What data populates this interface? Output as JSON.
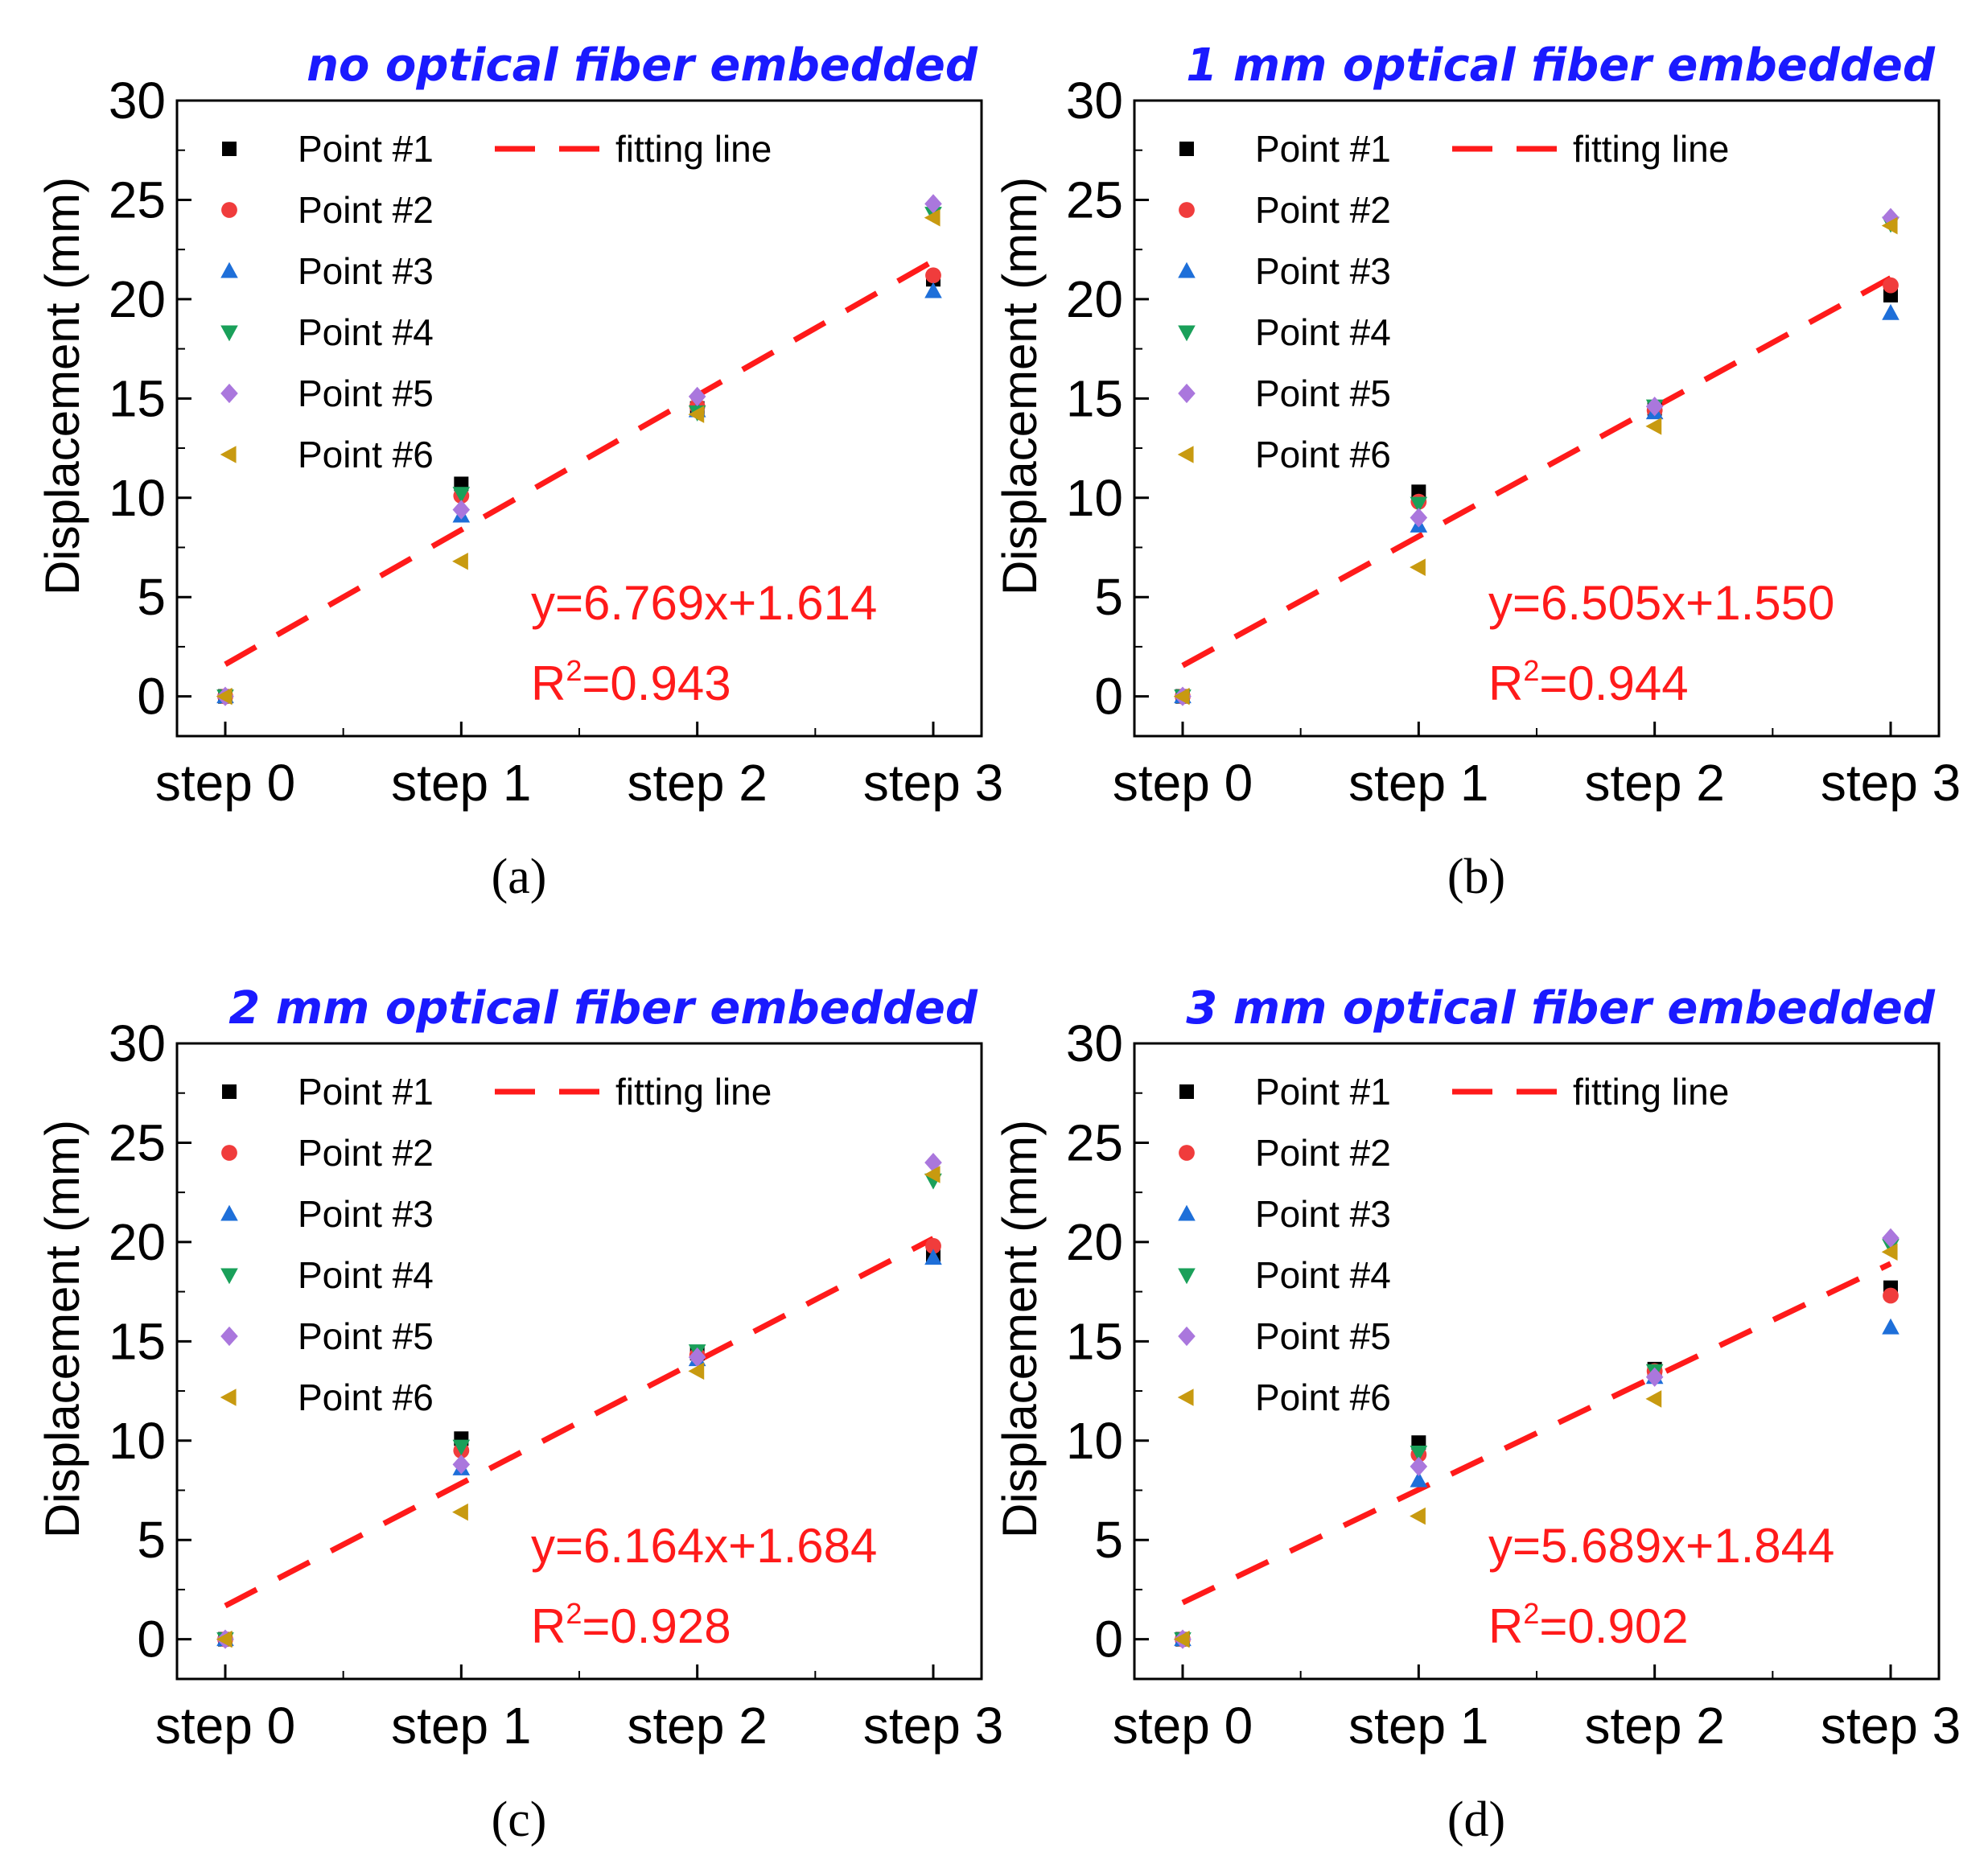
{
  "colors": {
    "point_1": "#000000",
    "point_2": "#f03c3c",
    "point_3": "#1e6fd9",
    "point_4": "#1aa05a",
    "point_5": "#aa77dd",
    "point_6": "#c89a10",
    "fit": "#ff1a1a",
    "title": "#1a1aff"
  },
  "chart_data": [
    {
      "type": "scatter",
      "panel": "(a)",
      "title": "no optical fiber embedded",
      "ylabel": "Displacement (mm)",
      "xlabel": "",
      "categories": [
        "step 0",
        "step 1",
        "step 2",
        "step 3"
      ],
      "ylim": [
        -2,
        30
      ],
      "yticks": [
        "0",
        "5",
        "10",
        "15",
        "20",
        "25",
        "30"
      ],
      "series": [
        {
          "name": "Point #1",
          "marker": "square",
          "values": [
            0,
            10.7,
            14.5,
            21.0
          ]
        },
        {
          "name": "Point #2",
          "marker": "circle",
          "values": [
            0,
            10.1,
            14.6,
            21.2
          ]
        },
        {
          "name": "Point #3",
          "marker": "triangle-up",
          "values": [
            0,
            9.1,
            14.4,
            20.4
          ]
        },
        {
          "name": "Point #4",
          "marker": "triangle-down",
          "values": [
            0,
            10.2,
            14.3,
            24.3
          ]
        },
        {
          "name": "Point #5",
          "marker": "diamond",
          "values": [
            0,
            9.4,
            15.1,
            24.8
          ]
        },
        {
          "name": "Point #6",
          "marker": "triangle-left",
          "values": [
            0,
            6.8,
            14.2,
            24.1
          ]
        }
      ],
      "fit": {
        "name": "fitting line",
        "slope": 6.769,
        "intercept": 1.614,
        "equation": "y=6.769x+1.614",
        "r2_prefix": "R",
        "r2_sup": "2",
        "r2_suffix": "=0.943"
      }
    },
    {
      "type": "scatter",
      "panel": "(b)",
      "title": "1 mm optical fiber embedded",
      "ylabel": "Displacement (mm)",
      "xlabel": "",
      "categories": [
        "step 0",
        "step 1",
        "step 2",
        "step 3"
      ],
      "ylim": [
        -2,
        30
      ],
      "yticks": [
        "0",
        "5",
        "10",
        "15",
        "20",
        "25",
        "30"
      ],
      "series": [
        {
          "name": "Point #1",
          "marker": "square",
          "values": [
            0,
            10.3,
            14.5,
            20.2
          ]
        },
        {
          "name": "Point #2",
          "marker": "circle",
          "values": [
            0,
            9.8,
            14.4,
            20.7
          ]
        },
        {
          "name": "Point #3",
          "marker": "triangle-up",
          "values": [
            0,
            8.6,
            14.3,
            19.3
          ]
        },
        {
          "name": "Point #4",
          "marker": "triangle-down",
          "values": [
            0,
            9.7,
            14.6,
            23.8
          ]
        },
        {
          "name": "Point #5",
          "marker": "diamond",
          "values": [
            0,
            9.0,
            14.6,
            24.1
          ]
        },
        {
          "name": "Point #6",
          "marker": "triangle-left",
          "values": [
            0,
            6.5,
            13.6,
            23.7
          ]
        }
      ],
      "fit": {
        "name": "fitting line",
        "slope": 6.505,
        "intercept": 1.55,
        "equation": "y=6.505x+1.550",
        "r2_prefix": "R",
        "r2_sup": "2",
        "r2_suffix": "=0.944"
      }
    },
    {
      "type": "scatter",
      "panel": "(c)",
      "title": "2 mm optical fiber embedded",
      "ylabel": "Displacement (mm)",
      "xlabel": "",
      "categories": [
        "step 0",
        "step 1",
        "step 2",
        "step 3"
      ],
      "ylim": [
        -2,
        30
      ],
      "yticks": [
        "0",
        "5",
        "10",
        "15",
        "20",
        "25",
        "30"
      ],
      "series": [
        {
          "name": "Point #1",
          "marker": "square",
          "values": [
            0,
            10.1,
            14.4,
            19.3
          ]
        },
        {
          "name": "Point #2",
          "marker": "circle",
          "values": [
            0,
            9.5,
            14.3,
            19.8
          ]
        },
        {
          "name": "Point #3",
          "marker": "triangle-up",
          "values": [
            0,
            8.6,
            14.1,
            19.2
          ]
        },
        {
          "name": "Point #4",
          "marker": "triangle-down",
          "values": [
            0,
            9.7,
            14.5,
            23.1
          ]
        },
        {
          "name": "Point #5",
          "marker": "diamond",
          "values": [
            0,
            8.8,
            14.2,
            24.0
          ]
        },
        {
          "name": "Point #6",
          "marker": "triangle-left",
          "values": [
            0,
            6.4,
            13.5,
            23.4
          ]
        }
      ],
      "fit": {
        "name": "fitting line",
        "slope": 6.164,
        "intercept": 1.684,
        "equation": "y=6.164x+1.684",
        "r2_prefix": "R",
        "r2_sup": "2",
        "r2_suffix": "=0.928"
      }
    },
    {
      "type": "scatter",
      "panel": "(d)",
      "title": "3 mm optical   fiber embedded",
      "ylabel": "Displacement (mm)",
      "xlabel": "",
      "categories": [
        "step 0",
        "step 1",
        "step 2",
        "step 3"
      ],
      "ylim": [
        -2,
        30
      ],
      "yticks": [
        "0",
        "5",
        "10",
        "15",
        "20",
        "25",
        "30"
      ],
      "series": [
        {
          "name": "Point #1",
          "marker": "square",
          "values": [
            0,
            9.9,
            13.6,
            17.7
          ]
        },
        {
          "name": "Point #2",
          "marker": "circle",
          "values": [
            0,
            9.3,
            13.5,
            17.3
          ]
        },
        {
          "name": "Point #3",
          "marker": "triangle-up",
          "values": [
            0,
            8.0,
            13.2,
            15.7
          ]
        },
        {
          "name": "Point #4",
          "marker": "triangle-down",
          "values": [
            0,
            9.4,
            13.5,
            19.8
          ]
        },
        {
          "name": "Point #5",
          "marker": "diamond",
          "values": [
            0,
            8.7,
            13.2,
            20.2
          ]
        },
        {
          "name": "Point #6",
          "marker": "triangle-left",
          "values": [
            0,
            6.2,
            12.1,
            19.5
          ]
        }
      ],
      "fit": {
        "name": "fitting line",
        "slope": 5.689,
        "intercept": 1.844,
        "equation": "y=5.689x+1.844",
        "r2_prefix": "R",
        "r2_sup": "2",
        "r2_suffix": "=0.902"
      }
    }
  ]
}
